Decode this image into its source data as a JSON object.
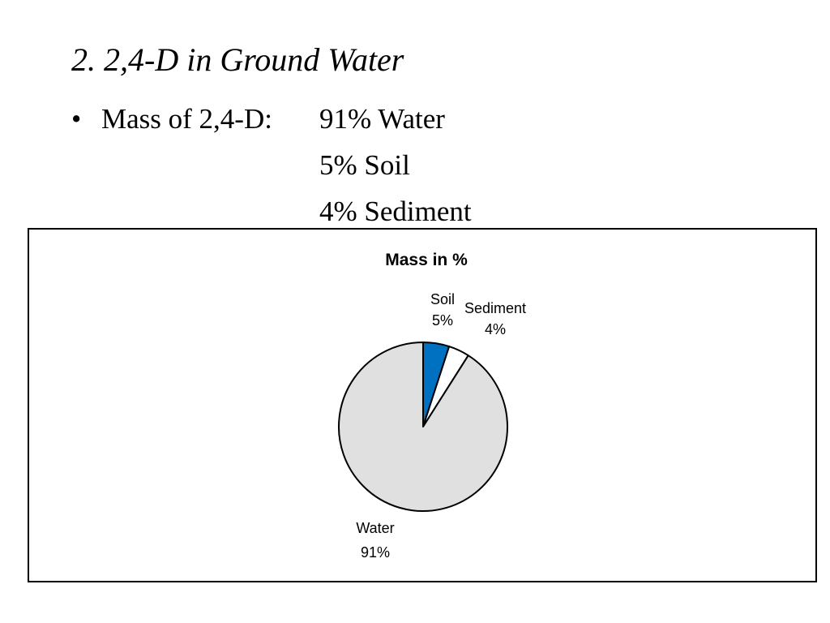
{
  "slide": {
    "title": "2.  2,4-D in Ground Water",
    "bullet_symbol": "•",
    "bullet_label": "Mass of 2,4-D:",
    "bullet_values": [
      "91% Water",
      "5% Soil",
      "4% Sediment"
    ]
  },
  "chart_data": {
    "type": "pie",
    "title": "Mass in %",
    "labels": [
      "Soil",
      "Sediment",
      "Water"
    ],
    "values": [
      5,
      4,
      91
    ],
    "value_labels": [
      "5%",
      "4%",
      "91%"
    ],
    "colors": [
      "#0070C0",
      "#FFFFFF",
      "#E0E0E0"
    ],
    "stroke_color": "#000000"
  }
}
